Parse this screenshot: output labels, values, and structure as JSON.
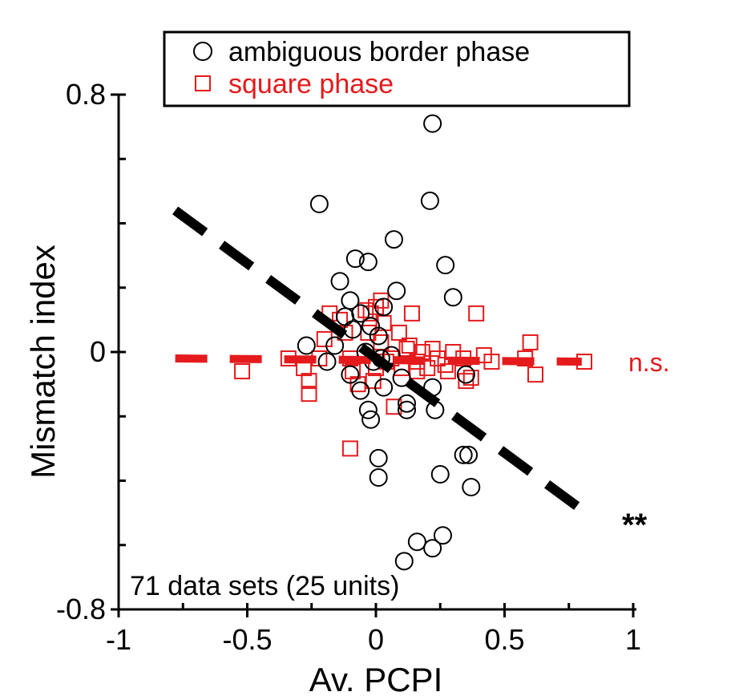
{
  "chart_data": {
    "type": "scatter",
    "title": "",
    "xlabel": "Av. PCPI",
    "ylabel": "Mismatch index",
    "xlim": [
      -1,
      1
    ],
    "ylim": [
      -0.8,
      0.8
    ],
    "x_ticks": [
      {
        "value": -1,
        "label": "-1"
      },
      {
        "value": -0.5,
        "label": "-0.5"
      },
      {
        "value": 0,
        "label": "0"
      },
      {
        "value": 0.5,
        "label": "0.5"
      },
      {
        "value": 1,
        "label": "1"
      }
    ],
    "y_ticks": [
      {
        "value": -0.8,
        "label": "-0.8"
      },
      {
        "value": 0,
        "label": "0"
      },
      {
        "value": 0.8,
        "label": "0.8"
      }
    ],
    "grid": false,
    "legend_position": "top",
    "annotation": "71 data sets (25 units)",
    "series": [
      {
        "name": "ambiguous border phase",
        "marker": "circle",
        "color": "#000000",
        "significance": "**",
        "fit": {
          "x": [
            -0.78,
            0.8
          ],
          "y": [
            0.44,
            -0.49
          ]
        },
        "points": [
          [
            0.22,
            0.71
          ],
          [
            0.21,
            0.47
          ],
          [
            -0.22,
            0.46
          ],
          [
            0.07,
            0.35
          ],
          [
            0.27,
            0.27
          ],
          [
            -0.08,
            0.29
          ],
          [
            -0.03,
            0.28
          ],
          [
            -0.14,
            0.22
          ],
          [
            0.08,
            0.19
          ],
          [
            0.3,
            0.17
          ],
          [
            -0.1,
            0.16
          ],
          [
            -0.12,
            0.11
          ],
          [
            -0.06,
            0.12
          ],
          [
            0.03,
            0.14
          ],
          [
            -0.02,
            0.08
          ],
          [
            -0.09,
            0.07
          ],
          [
            0.01,
            0.05
          ],
          [
            -0.16,
            0.02
          ],
          [
            -0.27,
            0.02
          ],
          [
            0.06,
            -0.01
          ],
          [
            -0.04,
            0.0
          ],
          [
            0.02,
            -0.02
          ],
          [
            -0.19,
            -0.03
          ],
          [
            -0.1,
            -0.07
          ],
          [
            0.1,
            -0.08
          ],
          [
            -0.06,
            -0.12
          ],
          [
            0.03,
            -0.11
          ],
          [
            0.12,
            -0.16
          ],
          [
            0.22,
            -0.11
          ],
          [
            -0.03,
            -0.18
          ],
          [
            -0.02,
            -0.21
          ],
          [
            0.12,
            -0.18
          ],
          [
            0.23,
            -0.18
          ],
          [
            0.01,
            -0.33
          ],
          [
            0.34,
            -0.32
          ],
          [
            0.36,
            -0.32
          ],
          [
            0.01,
            -0.39
          ],
          [
            0.25,
            -0.38
          ],
          [
            0.37,
            -0.42
          ],
          [
            0.26,
            -0.57
          ],
          [
            0.16,
            -0.59
          ],
          [
            0.22,
            -0.61
          ],
          [
            0.11,
            -0.65
          ],
          [
            0.35,
            -0.07
          ],
          [
            -0.01,
            -0.03
          ]
        ]
      },
      {
        "name": "square phase",
        "marker": "square",
        "color": "#e41a1c",
        "significance": "n.s.",
        "fit": {
          "x": [
            -0.78,
            0.8
          ],
          "y": [
            -0.02,
            -0.03
          ]
        },
        "points": [
          [
            -0.52,
            -0.06
          ],
          [
            -0.34,
            -0.02
          ],
          [
            -0.28,
            -0.05
          ],
          [
            -0.26,
            -0.09
          ],
          [
            -0.26,
            -0.13
          ],
          [
            -0.22,
            -0.02
          ],
          [
            -0.18,
            0.12
          ],
          [
            -0.14,
            0.1
          ],
          [
            -0.12,
            0.06
          ],
          [
            -0.2,
            0.04
          ],
          [
            -0.1,
            -0.02
          ],
          [
            -0.09,
            -0.06
          ],
          [
            -0.07,
            -0.1
          ],
          [
            -0.04,
            0.13
          ],
          [
            -0.02,
            0.12
          ],
          [
            0.0,
            0.14
          ],
          [
            0.02,
            0.16
          ],
          [
            0.03,
            0.09
          ],
          [
            -0.03,
            0.06
          ],
          [
            0.02,
            0.03
          ],
          [
            0.04,
            -0.03
          ],
          [
            0.06,
            -0.02
          ],
          [
            0.09,
            0.06
          ],
          [
            0.12,
            0.01
          ],
          [
            0.14,
            0.12
          ],
          [
            0.16,
            -0.03
          ],
          [
            0.18,
            0.0
          ],
          [
            0.2,
            -0.05
          ],
          [
            0.22,
            0.01
          ],
          [
            0.24,
            -0.02
          ],
          [
            0.27,
            -0.04
          ],
          [
            0.3,
            0.0
          ],
          [
            0.34,
            -0.02
          ],
          [
            0.37,
            -0.08
          ],
          [
            0.39,
            0.12
          ],
          [
            0.42,
            -0.01
          ],
          [
            0.45,
            -0.03
          ],
          [
            0.58,
            -0.02
          ],
          [
            0.6,
            0.03
          ],
          [
            0.62,
            -0.07
          ],
          [
            0.81,
            -0.03
          ],
          [
            0.16,
            -0.06
          ],
          [
            -0.01,
            -0.09
          ],
          [
            0.07,
            -0.17
          ],
          [
            -0.1,
            -0.3
          ],
          [
            0.0,
            -0.05
          ],
          [
            0.13,
            0.02
          ],
          [
            0.35,
            -0.09
          ],
          [
            0.28,
            -0.06
          ],
          [
            0.1,
            -0.05
          ]
        ]
      }
    ]
  }
}
